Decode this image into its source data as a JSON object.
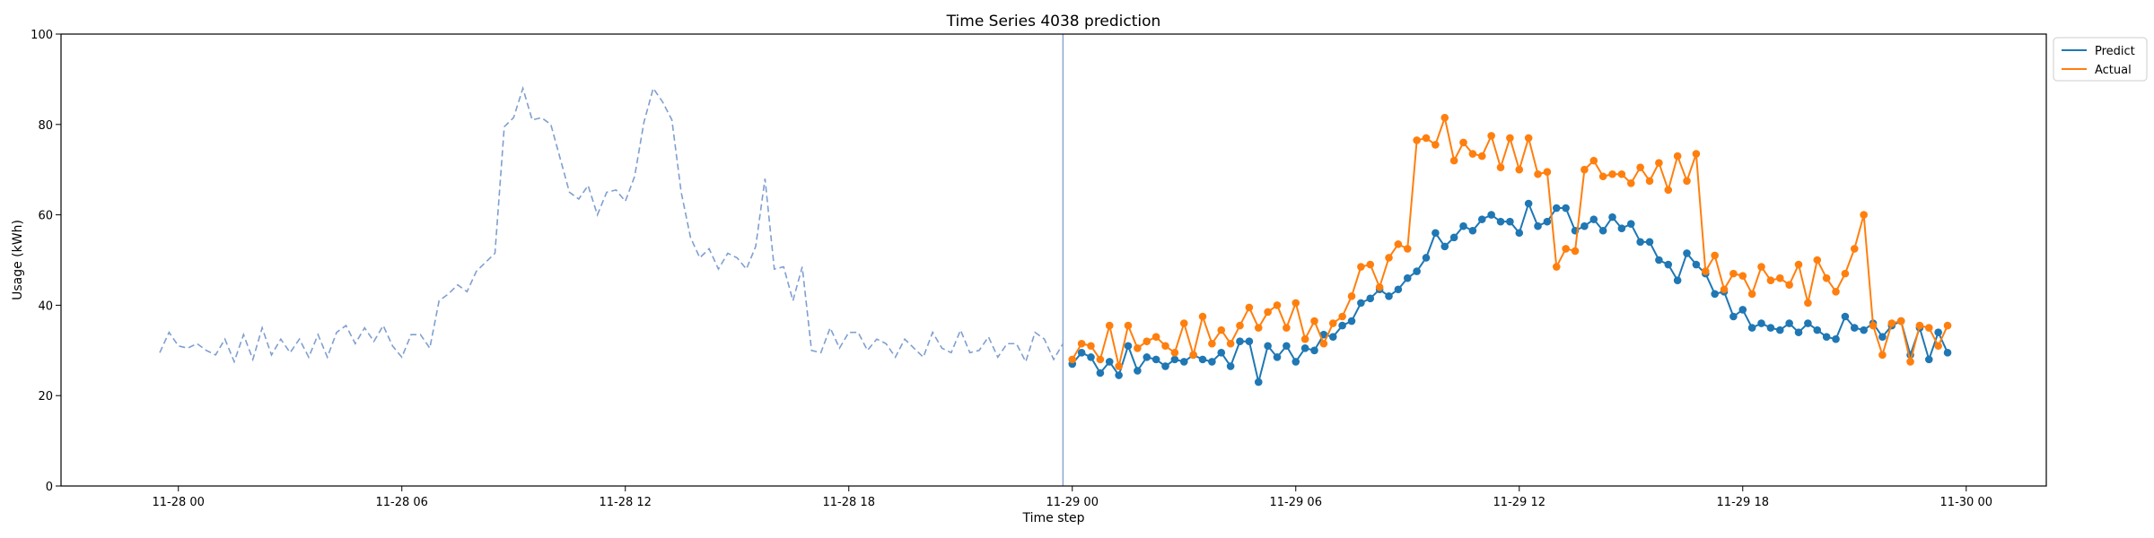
{
  "chart_data": {
    "type": "line",
    "title": "Time Series 4038 prediction",
    "xlabel": "Time step",
    "ylabel": "Usage (kWh)",
    "ylim": [
      0,
      100
    ],
    "xlim": [
      "2021-11-27 20:51",
      "2021-11-30 02:09"
    ],
    "yticks": [
      0,
      20,
      40,
      60,
      80,
      100
    ],
    "xticks": [
      {
        "t": "2021-11-28 00:00",
        "label": "11-28 00"
      },
      {
        "t": "2021-11-28 06:00",
        "label": "11-28 06"
      },
      {
        "t": "2021-11-28 12:00",
        "label": "11-28 12"
      },
      {
        "t": "2021-11-28 18:00",
        "label": "11-28 18"
      },
      {
        "t": "2021-11-29 00:00",
        "label": "11-29 00"
      },
      {
        "t": "2021-11-29 06:00",
        "label": "11-29 06"
      },
      {
        "t": "2021-11-29 12:00",
        "label": "11-29 12"
      },
      {
        "t": "2021-11-29 18:00",
        "label": "11-29 18"
      },
      {
        "t": "2021-11-30 00:00",
        "label": "11-30 00"
      }
    ],
    "grid": false,
    "legend": "outside top-right",
    "split_time": "2021-11-28 23:45",
    "history": {
      "start": "2021-11-27 23:30",
      "interval_minutes": 15,
      "style": "dashed",
      "color": "#7f9fd0",
      "values": [
        29.5,
        34.0,
        31.0,
        30.5,
        31.5,
        30.0,
        29.0,
        32.5,
        27.5,
        33.5,
        28.0,
        35.0,
        29.0,
        32.5,
        29.5,
        32.5,
        28.5,
        33.5,
        28.5,
        34.0,
        35.5,
        31.5,
        35.0,
        32.0,
        35.5,
        31.0,
        28.5,
        33.5,
        33.5,
        30.5,
        41.0,
        42.5,
        44.5,
        43.0,
        47.5,
        49.5,
        51.5,
        79.5,
        81.5,
        88.0,
        81.0,
        81.5,
        80.0,
        72.5,
        65.0,
        63.5,
        66.5,
        60.0,
        65.0,
        65.5,
        63.0,
        68.5,
        80.5,
        88.0,
        85.0,
        81.0,
        65.0,
        55.0,
        50.5,
        52.5,
        48.0,
        51.5,
        50.5,
        48.0,
        53.0,
        68.0,
        48.0,
        48.5,
        41.0,
        48.5,
        30.0,
        29.5,
        35.0,
        30.5,
        34.0,
        34.0,
        30.0,
        32.5,
        31.5,
        28.5,
        32.5,
        30.5,
        28.5,
        34.0,
        30.5,
        29.5,
        34.5,
        29.5,
        30.0,
        33.0,
        28.5,
        31.5,
        31.5,
        27.5,
        34.0,
        32.5,
        28.0,
        31.5
      ]
    },
    "x_start": "2021-11-29 00:00",
    "x_interval_minutes": 15,
    "series": [
      {
        "name": "Predict",
        "color": "#1f77b4",
        "values": [
          27.0,
          29.5,
          28.5,
          25.0,
          27.5,
          24.5,
          31.0,
          25.5,
          28.5,
          28.0,
          26.5,
          28.0,
          27.5,
          29.0,
          28.0,
          27.5,
          29.5,
          26.5,
          32.0,
          32.0,
          23.0,
          31.0,
          28.5,
          31.0,
          27.5,
          30.5,
          30.0,
          33.5,
          33.0,
          35.5,
          36.5,
          40.5,
          41.5,
          43.5,
          42.0,
          43.5,
          46.0,
          47.5,
          50.5,
          56.0,
          53.0,
          55.0,
          57.5,
          56.5,
          59.0,
          60.0,
          58.5,
          58.5,
          56.0,
          62.5,
          57.5,
          58.5,
          61.5,
          61.5,
          56.5,
          57.5,
          59.0,
          56.5,
          59.5,
          57.0,
          58.0,
          54.0,
          54.0,
          50.0,
          49.0,
          45.5,
          51.5,
          49.0,
          47.0,
          42.5,
          43.0,
          37.5,
          39.0,
          35.0,
          36.0,
          35.0,
          34.5,
          36.0,
          34.0,
          36.0,
          34.5,
          33.0,
          32.5,
          37.5,
          35.0,
          34.5,
          36.0,
          33.0,
          35.5,
          36.5,
          29.0,
          35.0,
          28.0,
          34.0,
          29.5
        ]
      },
      {
        "name": "Actual",
        "color": "#ff7f0e",
        "values": [
          28.0,
          31.5,
          31.0,
          28.0,
          35.5,
          26.5,
          35.5,
          30.5,
          32.0,
          33.0,
          31.0,
          29.5,
          36.0,
          29.0,
          37.5,
          31.5,
          34.5,
          31.5,
          35.5,
          39.5,
          35.0,
          38.5,
          40.0,
          35.0,
          40.5,
          32.5,
          36.5,
          31.5,
          36.0,
          37.5,
          42.0,
          48.5,
          49.0,
          44.0,
          50.5,
          53.5,
          52.5,
          76.5,
          77.0,
          75.5,
          81.5,
          72.0,
          76.0,
          73.5,
          73.0,
          77.5,
          70.5,
          77.0,
          70.0,
          77.0,
          69.0,
          69.5,
          48.5,
          52.5,
          52.0,
          70.0,
          72.0,
          68.5,
          69.0,
          69.0,
          67.0,
          70.5,
          67.5,
          71.5,
          65.5,
          73.0,
          67.5,
          73.5,
          47.5,
          51.0,
          43.5,
          47.0,
          46.5,
          42.5,
          48.5,
          45.5,
          46.0,
          44.5,
          49.0,
          40.5,
          50.0,
          46.0,
          43.0,
          47.0,
          52.5,
          60.0,
          35.5,
          29.0,
          36.0,
          36.5,
          27.5,
          35.5,
          35.0,
          31.0,
          35.5
        ]
      }
    ]
  }
}
